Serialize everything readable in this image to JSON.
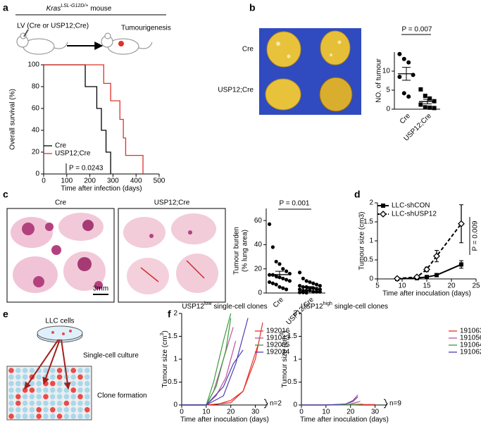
{
  "figure": {
    "panel_labels": [
      "a",
      "b",
      "c",
      "d",
      "e",
      "f"
    ],
    "a_header": {
      "gene": "Kras",
      "superscript": "LSL-G12D/+",
      "suffix": "mouse"
    },
    "a_injection": "LV (Cre or USP12;Cre)",
    "a_outcome": "Tumourigenesis",
    "b_rows": [
      "Cre",
      "USP12;Cre"
    ],
    "c_images": [
      "Cre",
      "USP12;Cre"
    ],
    "c_scale": "3mm",
    "e_source": "LLC cells",
    "e_step": "Single-cell culture",
    "e_result": "Clone formation"
  },
  "chart_data": [
    {
      "type": "step",
      "xlabel": "Time after infection (days)",
      "ylabel": "Overall survival (%)",
      "xlim": [
        0,
        500
      ],
      "xticks": [
        0,
        100,
        200,
        300,
        400,
        500
      ],
      "ylim": [
        0,
        100
      ],
      "yticks": [
        0,
        20,
        40,
        60,
        80,
        100
      ],
      "annotation": "P = 0.0243",
      "series": [
        {
          "name": "Cre",
          "color": "#000000",
          "x": [
            0,
            180,
            230,
            250,
            270,
            290
          ],
          "values": [
            100,
            80,
            60,
            40,
            20,
            0
          ]
        },
        {
          "name": "USP12;Cre",
          "color": "#e0302a",
          "x": [
            0,
            260,
            290,
            330,
            345,
            355,
            430
          ],
          "values": [
            100,
            83,
            67,
            50,
            33,
            17,
            0
          ]
        }
      ]
    },
    {
      "type": "dot",
      "ylabel": "NO. of tumour",
      "ylim": [
        0,
        15
      ],
      "yticks": [
        0,
        5,
        10
      ],
      "annotation": "P = 0.007",
      "groups": [
        {
          "name": "Cre",
          "marker": "circle",
          "color": "#000000",
          "values": [
            14.5,
            13.2,
            12.3,
            9,
            8.5,
            4.2,
            3.3
          ],
          "mean": 9.3,
          "sem": 1.7
        },
        {
          "name": "USP12;Cre",
          "marker": "square",
          "color": "#000000",
          "values": [
            5.2,
            3.5,
            2.8,
            2.1,
            1.2,
            0.5,
            0.4,
            0.3
          ],
          "mean": 2.0,
          "sem": 0.6
        }
      ]
    },
    {
      "type": "dot",
      "ylabel": [
        "Tumour burden",
        "(% lung area)"
      ],
      "ylim": [
        0,
        70
      ],
      "yticks": [
        0,
        20,
        40,
        60
      ],
      "annotation": "P = 0.001",
      "groups": [
        {
          "name": "Cre",
          "marker": "circle",
          "color": "#000000",
          "values": [
            57,
            38,
            26,
            24,
            20,
            18,
            16,
            15,
            15,
            14,
            13,
            12,
            11,
            10,
            9,
            8,
            7,
            5,
            4,
            3
          ],
          "mean": 15.2,
          "sem": 2.8
        },
        {
          "name": "USP12;Cre",
          "marker": "circle",
          "color": "#000000",
          "values": [
            17,
            12,
            10,
            9,
            8,
            7,
            6,
            6,
            5,
            5,
            4,
            4,
            3,
            3,
            3,
            2,
            2,
            2,
            1,
            1,
            1,
            0.5,
            0.5,
            0.2
          ],
          "mean": 4.5,
          "sem": 0.8
        }
      ]
    },
    {
      "type": "line",
      "xlabel": "Time after inoculation (days)",
      "ylabel": "Tumour size (cm3)",
      "xlim": [
        5,
        25
      ],
      "xticks": [
        5,
        10,
        15,
        20,
        25
      ],
      "ylim": [
        0,
        2
      ],
      "yticks": [
        0,
        0.5,
        1,
        1.5,
        2
      ],
      "annotation": "P = 0.009",
      "series": [
        {
          "name": "LLC-shCON",
          "color": "#000000",
          "marker": "square",
          "dash": false,
          "x": [
            9,
            13,
            15,
            17,
            22
          ],
          "values": [
            0,
            0.02,
            0.05,
            0.1,
            0.38
          ],
          "errors": [
            0,
            0.01,
            0.02,
            0.03,
            0.1
          ]
        },
        {
          "name": "LLC-shUSP12",
          "color": "#000000",
          "marker": "diamond",
          "dash": true,
          "x": [
            9,
            13,
            15,
            17,
            22
          ],
          "values": [
            0.01,
            0.05,
            0.25,
            0.6,
            1.45
          ],
          "errors": [
            0,
            0.02,
            0.06,
            0.15,
            0.5
          ]
        }
      ]
    },
    {
      "type": "line",
      "title": "USP12",
      "title_sup": "low",
      "title_suffix": "single-cell clones",
      "xlabel": "Time after inoculation (days)",
      "ylabel": "Tumour size (cm",
      "ylabel_sup": "3",
      "ylabel_end": ")",
      "xlim": [
        0,
        35
      ],
      "xticks": [
        0,
        10,
        20,
        30
      ],
      "ylim": [
        0,
        2
      ],
      "yticks": [
        0,
        0.5,
        1,
        1.5,
        2
      ],
      "annotation": "n=2",
      "series": [
        {
          "name": "192016",
          "color": "#e8302a",
          "label_color": "#e8302a",
          "lines": [
            {
              "x": [
                0,
                10,
                15,
                20,
                25,
                30,
                33
              ],
              "values": [
                0,
                0,
                0.02,
                0.1,
                0.3,
                1.0,
                1.8
              ]
            },
            {
              "x": [
                0,
                10,
                20,
                25,
                28,
                31
              ],
              "values": [
                0,
                0,
                0.05,
                0.3,
                0.8,
                1.3
              ]
            }
          ]
        },
        {
          "name": "191043",
          "color": "#c0509a",
          "label_color": "#2b2b9c",
          "lines": [
            {
              "x": [
                0,
                10,
                13,
                17,
                21
              ],
              "values": [
                0,
                0,
                0.3,
                1.0,
                1.7
              ]
            },
            {
              "x": [
                0,
                10,
                14,
                18,
                22
              ],
              "values": [
                0,
                0,
                0.2,
                0.6,
                1.4
              ]
            }
          ]
        },
        {
          "name": "192005",
          "color": "#3a9a3a",
          "label_color": "#2b2b9c",
          "lines": [
            {
              "x": [
                0,
                10,
                13,
                17,
                20
              ],
              "values": [
                0,
                0,
                0.5,
                1.4,
                2.0
              ]
            },
            {
              "x": [
                0,
                10,
                14,
                18,
                20
              ],
              "values": [
                0,
                0,
                0.4,
                1.2,
                1.9
              ]
            }
          ]
        },
        {
          "name": "192024",
          "color": "#4a3fb0",
          "label_color": "#2b2b9c",
          "lines": [
            {
              "x": [
                0,
                10,
                17,
                22,
                27
              ],
              "values": [
                0,
                0,
                0.2,
                0.9,
                1.9
              ]
            },
            {
              "x": [
                0,
                10,
                17,
                21,
                25
              ],
              "values": [
                0,
                0,
                0.4,
                0.9,
                1.2
              ]
            }
          ]
        }
      ]
    },
    {
      "type": "line",
      "title": "USP12",
      "title_sup": "high",
      "title_suffix": "single-cell clones",
      "xlabel": "Time after inoculation (days)",
      "ylabel": "Tumour size (cm",
      "ylabel_sup": "3",
      "ylabel_end": ")",
      "xlim": [
        0,
        35
      ],
      "xticks": [
        0,
        10,
        20,
        30
      ],
      "ylim": [
        0,
        2
      ],
      "yticks": [
        0,
        0.5,
        1,
        1.5,
        2
      ],
      "annotation": "n=9",
      "series": [
        {
          "name": "191063",
          "color": "#e8302a",
          "label_color": "#e8302a",
          "lines": [
            {
              "x": [
                0,
                10,
                20,
                24,
                30
              ],
              "values": [
                0,
                0,
                0,
                0.01,
                0.01
              ]
            }
          ]
        },
        {
          "name": "191056",
          "color": "#c0509a",
          "label_color": "#e8302a",
          "lines": [
            {
              "x": [
                0,
                10,
                18,
                21,
                23
              ],
              "values": [
                0,
                0,
                0.02,
                0.1,
                0.22
              ]
            },
            {
              "x": [
                0,
                10,
                19,
                22,
                24
              ],
              "values": [
                0,
                0,
                0.01,
                0.05,
                0.08
              ]
            }
          ]
        },
        {
          "name": "191064",
          "color": "#3a9a3a",
          "label_color": "#e8302a",
          "lines": [
            {
              "x": [
                0,
                10,
                20,
                25
              ],
              "values": [
                0,
                0,
                0.01,
                0.02
              ]
            }
          ]
        },
        {
          "name": "191062",
          "color": "#4a3fb0",
          "label_color": "#e8302a",
          "lines": [
            {
              "x": [
                0,
                10,
                18,
                21,
                23
              ],
              "values": [
                0,
                0,
                0.02,
                0.08,
                0.18
              ]
            }
          ]
        }
      ]
    }
  ]
}
